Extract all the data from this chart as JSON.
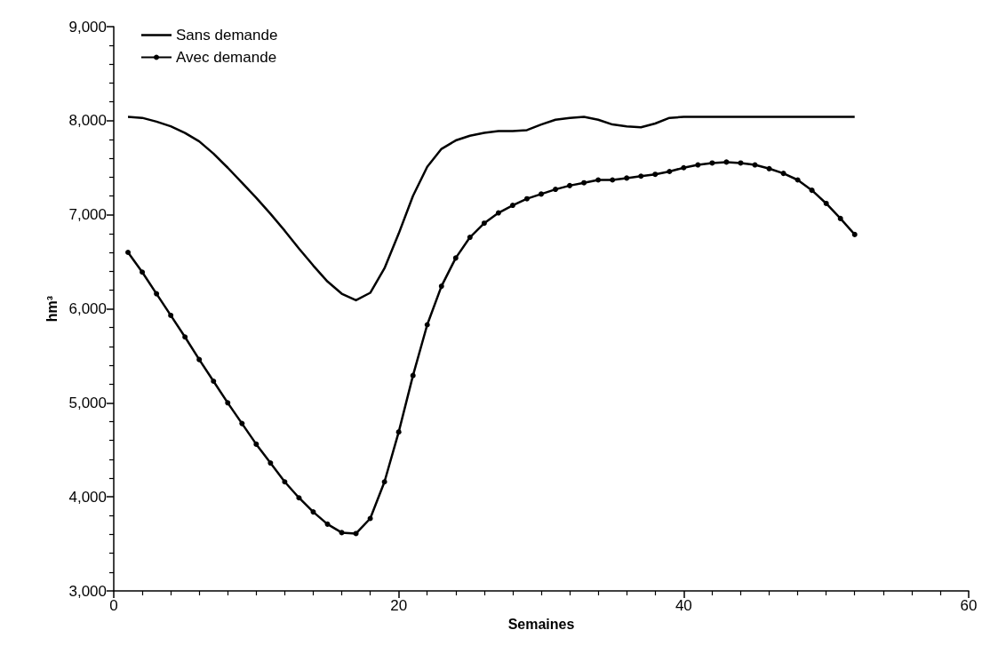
{
  "chart_data": {
    "type": "line",
    "xlabel": "Semaines",
    "ylabel": "hm³",
    "x": [
      1,
      2,
      3,
      4,
      5,
      6,
      7,
      8,
      9,
      10,
      11,
      12,
      13,
      14,
      15,
      16,
      17,
      18,
      19,
      20,
      21,
      22,
      23,
      24,
      25,
      26,
      27,
      28,
      29,
      30,
      31,
      32,
      33,
      34,
      35,
      36,
      37,
      38,
      39,
      40,
      41,
      42,
      43,
      44,
      45,
      46,
      47,
      48,
      49,
      50,
      51,
      52
    ],
    "series": [
      {
        "name": "Sans demande",
        "color": "#000000",
        "marker": "none",
        "values": [
          8040,
          8030,
          7990,
          7940,
          7870,
          7780,
          7650,
          7500,
          7340,
          7180,
          7010,
          6830,
          6640,
          6460,
          6290,
          6160,
          6090,
          6170,
          6430,
          6800,
          7200,
          7510,
          7700,
          7790,
          7840,
          7870,
          7890,
          7890,
          7900,
          7960,
          8010,
          8030,
          8040,
          8010,
          7960,
          7940,
          7930,
          7970,
          8030,
          8040,
          8040,
          8040,
          8040,
          8040,
          8040,
          8040,
          8040,
          8040,
          8040,
          8040,
          8040,
          8040
        ]
      },
      {
        "name": "Avec demande",
        "color": "#000000",
        "marker": "circle",
        "values": [
          6600,
          6390,
          6160,
          5930,
          5700,
          5460,
          5230,
          5000,
          4780,
          4560,
          4360,
          4160,
          3990,
          3840,
          3710,
          3620,
          3610,
          3770,
          4160,
          4690,
          5290,
          5830,
          6240,
          6540,
          6760,
          6910,
          7020,
          7100,
          7170,
          7220,
          7270,
          7310,
          7340,
          7370,
          7370,
          7390,
          7410,
          7430,
          7460,
          7500,
          7530,
          7550,
          7560,
          7550,
          7530,
          7490,
          7440,
          7370,
          7260,
          7120,
          6960,
          6790
        ]
      }
    ],
    "xlim": [
      0,
      60
    ],
    "xticks": [
      0,
      20,
      40,
      60
    ],
    "ylim": [
      3000,
      9000
    ],
    "yticks": [
      {
        "value": 3000,
        "label": "3,000"
      },
      {
        "value": 4000,
        "label": "4,000"
      },
      {
        "value": 5000,
        "label": "5,000"
      },
      {
        "value": 6000,
        "label": "6,000"
      },
      {
        "value": 7000,
        "label": "7,000"
      },
      {
        "value": 8000,
        "label": "8,000"
      },
      {
        "value": 9000,
        "label": "9,000"
      }
    ],
    "grid": false,
    "legend": "top left",
    "line_style": "solid"
  }
}
